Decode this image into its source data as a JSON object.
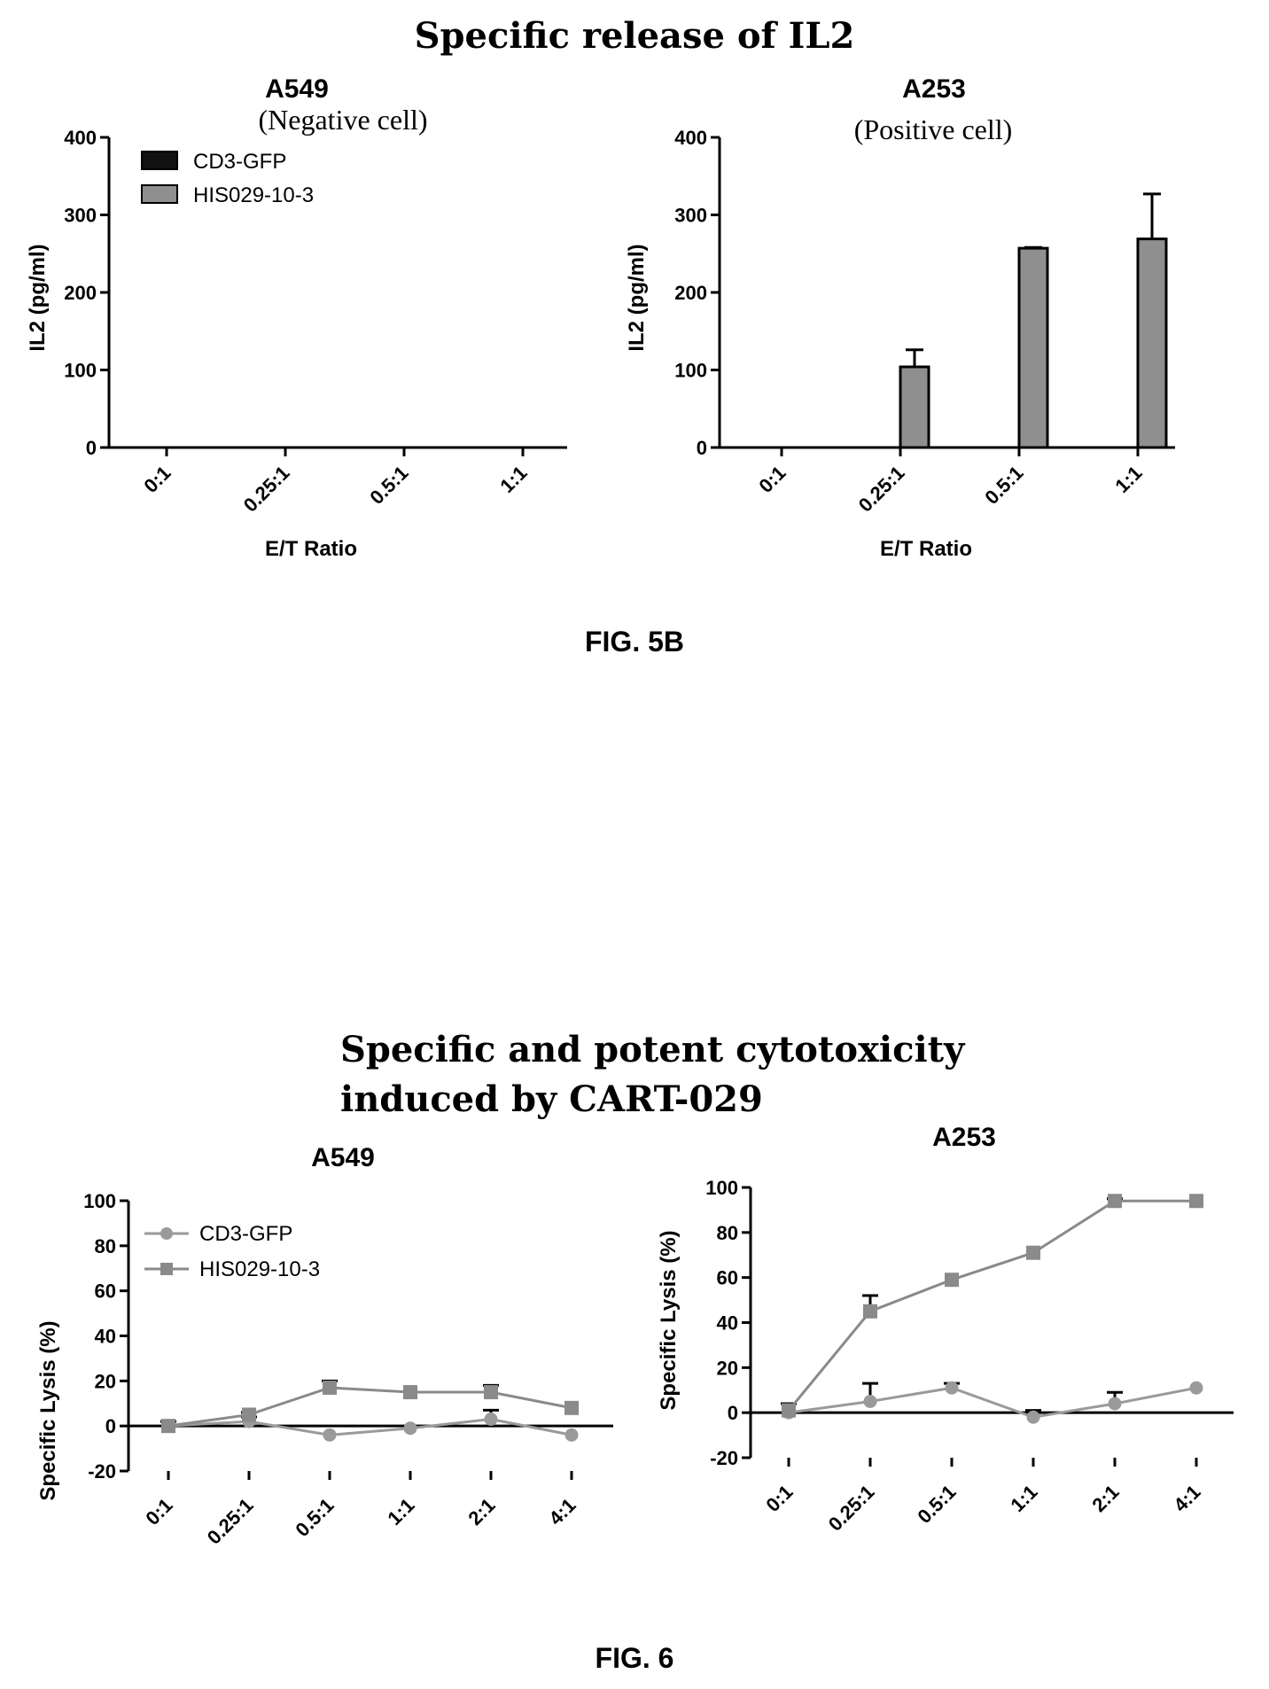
{
  "colors": {
    "cd3_bar": "#111111",
    "his_bar": "#8f8f8f",
    "cd3_line": "#9a9a9a",
    "his_line": "#8a8a8a",
    "axis": "#000000"
  },
  "chart_data": [
    {
      "type": "bar",
      "figure_title": "Specific release of  IL2",
      "title": "A549",
      "subtitle": "(Negative cell)",
      "xlabel": "E/T Ratio",
      "ylabel": "IL2 (pg/ml)",
      "categories": [
        "0:1",
        "0.25:1",
        "0.5:1",
        "1:1"
      ],
      "ylim": [
        0,
        400
      ],
      "yticks": [
        "0",
        "100",
        "200",
        "300",
        "400"
      ],
      "legend_position": "top-left",
      "series": [
        {
          "name": "CD3-GFP",
          "values": [
            0,
            0,
            0,
            0
          ],
          "errors": [
            0,
            0,
            0,
            0
          ]
        },
        {
          "name": "HIS029-10-3",
          "values": [
            0,
            0,
            0,
            0
          ],
          "errors": [
            0,
            0,
            0,
            0
          ]
        }
      ],
      "figure_label": "FIG. 5B"
    },
    {
      "type": "bar",
      "title": "A253",
      "subtitle": "(Positive cell)",
      "xlabel": "E/T Ratio",
      "ylabel": "IL2 (pg/ml)",
      "categories": [
        "0:1",
        "0.25:1",
        "0.5:1",
        "1:1"
      ],
      "ylim": [
        0,
        400
      ],
      "yticks": [
        "0",
        "100",
        "200",
        "300",
        "400"
      ],
      "series": [
        {
          "name": "CD3-GFP",
          "values": [
            0,
            0,
            0,
            0
          ],
          "errors": [
            0,
            0,
            0,
            0
          ]
        },
        {
          "name": "HIS029-10-3",
          "values": [
            0,
            104,
            257,
            269
          ],
          "errors": [
            0,
            22,
            1,
            58
          ]
        }
      ]
    },
    {
      "type": "line",
      "figure_title": [
        "Specific and potent cytotoxicity",
        "induced by CART-029"
      ],
      "title": "A549",
      "xlabel": "",
      "ylabel": "Specific Lysis (%)",
      "categories": [
        "0:1",
        "0.25:1",
        "0.5:1",
        "1:1",
        "2:1",
        "4:1"
      ],
      "ylim": [
        -20,
        100
      ],
      "yticks": [
        "-20",
        "0",
        "20",
        "40",
        "60",
        "80",
        "100"
      ],
      "legend_position": "top-left",
      "series": [
        {
          "name": "CD3-GFP",
          "marker": "circle",
          "values": [
            0,
            2,
            -4,
            -1,
            3,
            -4
          ],
          "errors": [
            2,
            2,
            0,
            0,
            4,
            0
          ]
        },
        {
          "name": "HIS029-10-3",
          "marker": "square",
          "values": [
            0,
            5,
            17,
            15,
            15,
            8
          ],
          "errors": [
            0,
            1,
            3,
            0,
            3,
            0
          ]
        }
      ],
      "figure_label": "FIG. 6"
    },
    {
      "type": "line",
      "title": "A253",
      "xlabel": "",
      "ylabel": "Specific Lysis (%)",
      "categories": [
        "0:1",
        "0.25:1",
        "0.5:1",
        "1:1",
        "2:1",
        "4:1"
      ],
      "ylim": [
        -20,
        100
      ],
      "yticks": [
        "-20",
        "0",
        "20",
        "40",
        "60",
        "80",
        "100"
      ],
      "series": [
        {
          "name": "CD3-GFP",
          "marker": "circle",
          "values": [
            0,
            5,
            11,
            -2,
            4,
            11
          ],
          "errors": [
            4,
            8,
            2,
            3,
            5,
            0
          ]
        },
        {
          "name": "HIS029-10-3",
          "marker": "square",
          "values": [
            1,
            45,
            59,
            71,
            94,
            94
          ],
          "errors": [
            3,
            7,
            0,
            0,
            1,
            0
          ]
        }
      ]
    }
  ]
}
